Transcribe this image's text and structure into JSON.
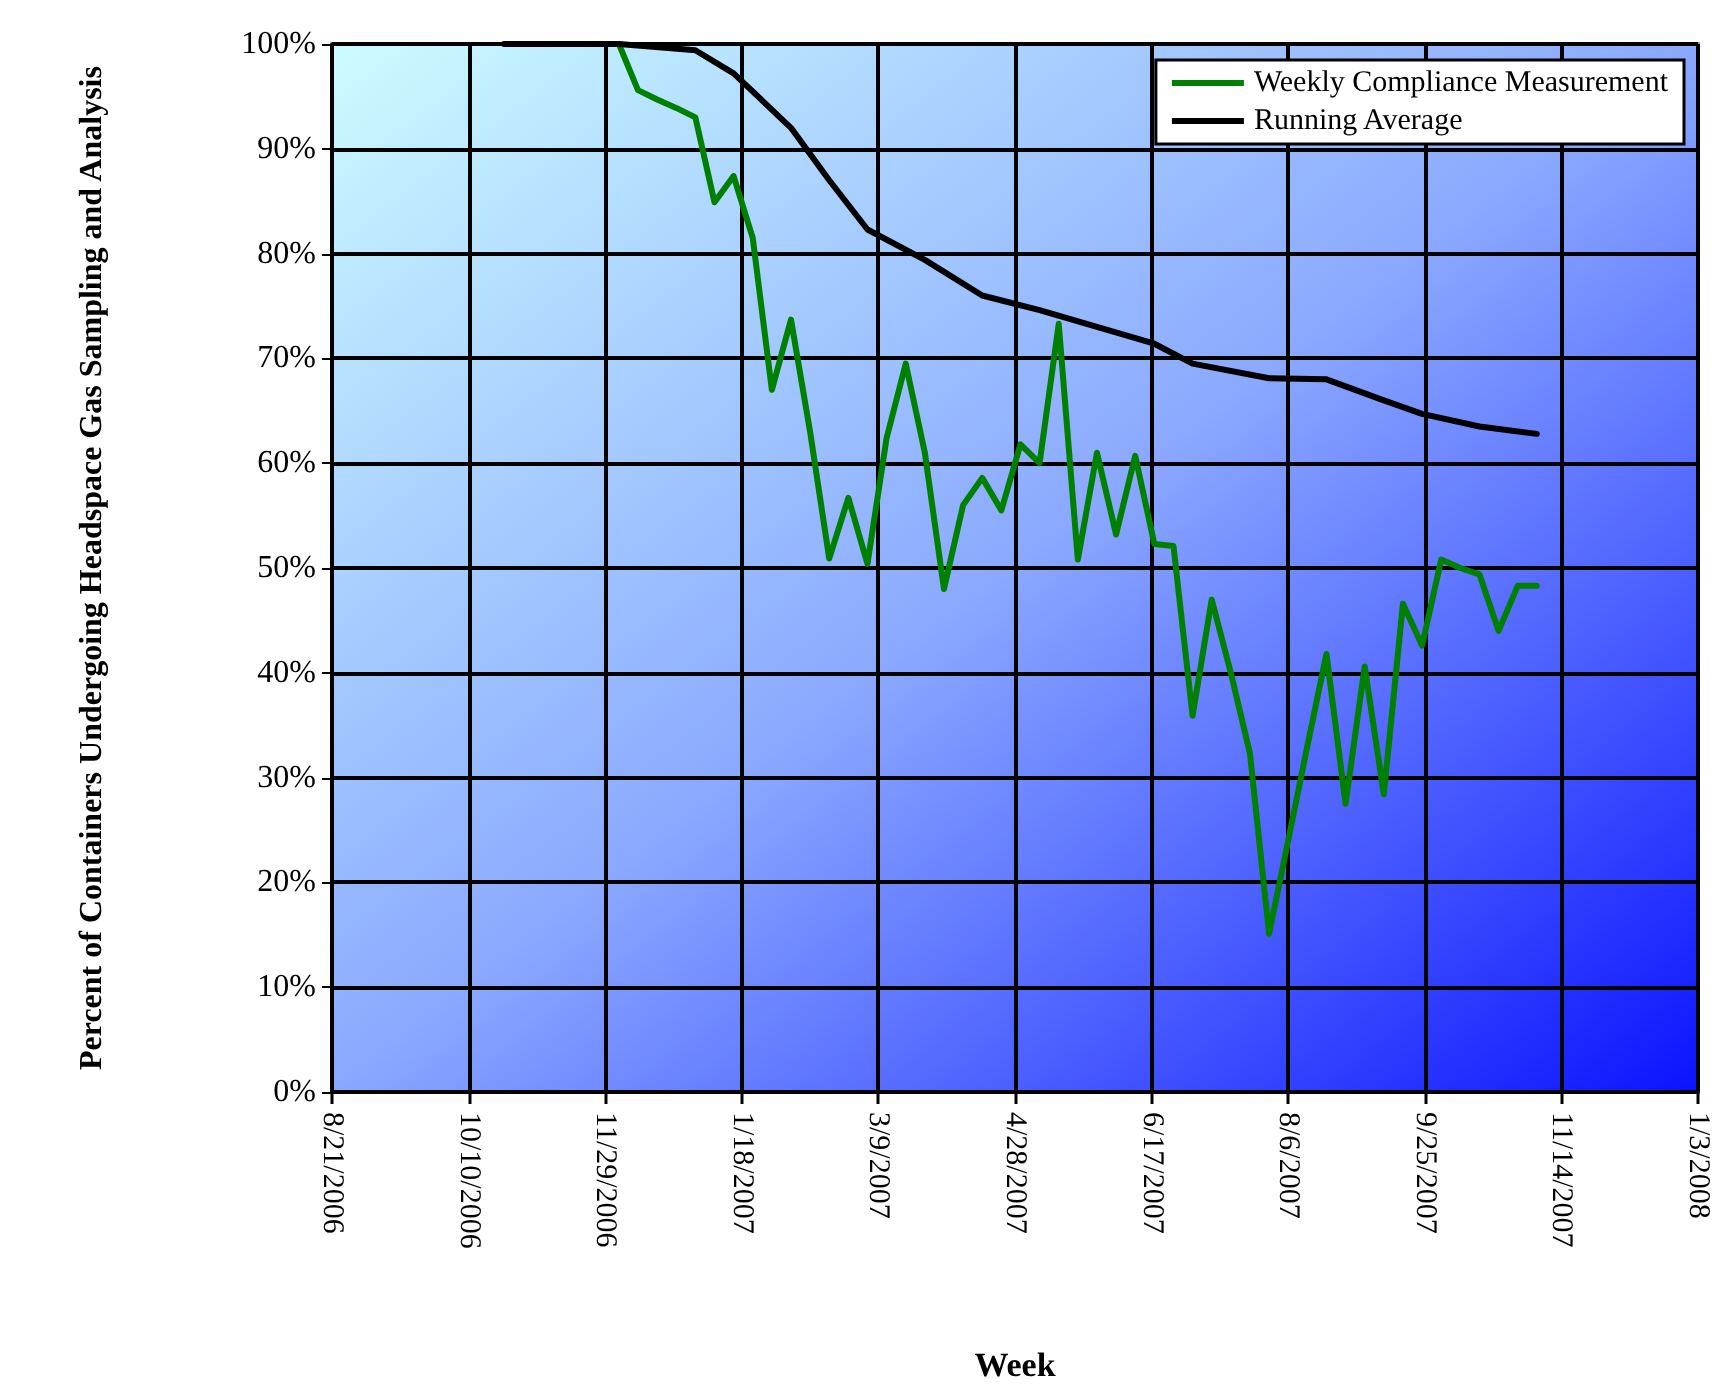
{
  "chart_data": {
    "type": "line",
    "xlabel": "Week",
    "ylabel": "Percent of Containers Undergoing Headspace Gas Sampling and Analysis",
    "xlim": [
      "2006-08-21",
      "2008-01-03"
    ],
    "xticks": [
      {
        "value": "2006-08-21",
        "label": "8/21/2006"
      },
      {
        "value": "2006-10-10",
        "label": "10/10/2006"
      },
      {
        "value": "2006-11-29",
        "label": "11/29/2006"
      },
      {
        "value": "2007-01-18",
        "label": "1/18/2007"
      },
      {
        "value": "2007-03-09",
        "label": "3/9/2007"
      },
      {
        "value": "2007-04-28",
        "label": "4/28/2007"
      },
      {
        "value": "2007-06-17",
        "label": "6/17/2007"
      },
      {
        "value": "2007-08-06",
        "label": "8/6/2007"
      },
      {
        "value": "2007-09-25",
        "label": "9/25/2007"
      },
      {
        "value": "2007-11-14",
        "label": "11/14/2007"
      },
      {
        "value": "2008-01-03",
        "label": "1/3/2008"
      }
    ],
    "ylim": [
      0,
      100
    ],
    "yticks": [
      {
        "value": 0,
        "label": "0%"
      },
      {
        "value": 10,
        "label": "10%"
      },
      {
        "value": 20,
        "label": "20%"
      },
      {
        "value": 30,
        "label": "30%"
      },
      {
        "value": 40,
        "label": "40%"
      },
      {
        "value": 50,
        "label": "50%"
      },
      {
        "value": 60,
        "label": "60%"
      },
      {
        "value": 70,
        "label": "70%"
      },
      {
        "value": 80,
        "label": "80%"
      },
      {
        "value": 90,
        "label": "90%"
      },
      {
        "value": 100,
        "label": "100%"
      }
    ],
    "grid": true,
    "legend": "top right",
    "marker": "none",
    "line_style": "solid",
    "series": [
      {
        "name": "Weekly Compliance Measurement",
        "color": "#008000",
        "x": [
          "2006-12-04",
          "2006-12-11",
          "2006-12-18",
          "2006-12-25",
          "2007-01-01",
          "2007-01-08",
          "2007-01-15",
          "2007-01-22",
          "2007-01-29",
          "2007-02-05",
          "2007-02-12",
          "2007-02-19",
          "2007-02-26",
          "2007-03-05",
          "2007-03-12",
          "2007-03-19",
          "2007-03-26",
          "2007-04-02",
          "2007-04-09",
          "2007-04-16",
          "2007-04-23",
          "2007-04-30",
          "2007-05-07",
          "2007-05-14",
          "2007-05-21",
          "2007-05-28",
          "2007-06-04",
          "2007-06-11",
          "2007-06-18",
          "2007-06-25",
          "2007-07-02",
          "2007-07-09",
          "2007-07-16",
          "2007-07-23",
          "2007-07-30",
          "2007-08-06",
          "2007-08-13",
          "2007-08-20",
          "2007-08-27",
          "2007-09-03",
          "2007-09-10",
          "2007-09-17",
          "2007-09-24",
          "2007-10-01",
          "2007-10-08",
          "2007-10-15",
          "2007-10-22",
          "2007-10-29",
          "2007-11-05"
        ],
        "values": [
          100,
          95.6,
          94.7,
          93.9,
          93,
          84.9,
          87.4,
          81.5,
          67,
          73.7,
          63,
          50.9,
          56.7,
          50.4,
          62.4,
          69.5,
          61,
          48,
          56,
          58.6,
          55.5,
          61.8,
          60,
          73.3,
          50.8,
          61,
          53.2,
          60.7,
          52.3,
          52.1,
          35.9,
          47,
          40,
          32.3,
          15.1,
          24,
          33,
          41.8,
          27.5,
          40.6,
          28.4,
          46.6,
          42.6,
          50.8,
          50,
          49.4,
          44,
          48.3,
          48.3
        ]
      },
      {
        "name": "Running Average",
        "color": "#000000",
        "x": [
          "2006-10-23",
          "2006-12-04",
          "2007-01-01",
          "2007-01-15",
          "2007-02-05",
          "2007-02-19",
          "2007-03-05",
          "2007-03-26",
          "2007-04-16",
          "2007-05-07",
          "2007-05-28",
          "2007-06-18",
          "2007-07-02",
          "2007-07-30",
          "2007-08-20",
          "2007-09-10",
          "2007-09-24",
          "2007-10-15",
          "2007-11-05"
        ],
        "values": [
          100,
          100,
          99.4,
          97.2,
          92,
          87,
          82.3,
          79.4,
          76,
          74.6,
          73,
          71.4,
          69.5,
          68.1,
          68,
          66,
          64.7,
          63.5,
          62.8
        ]
      }
    ]
  }
}
